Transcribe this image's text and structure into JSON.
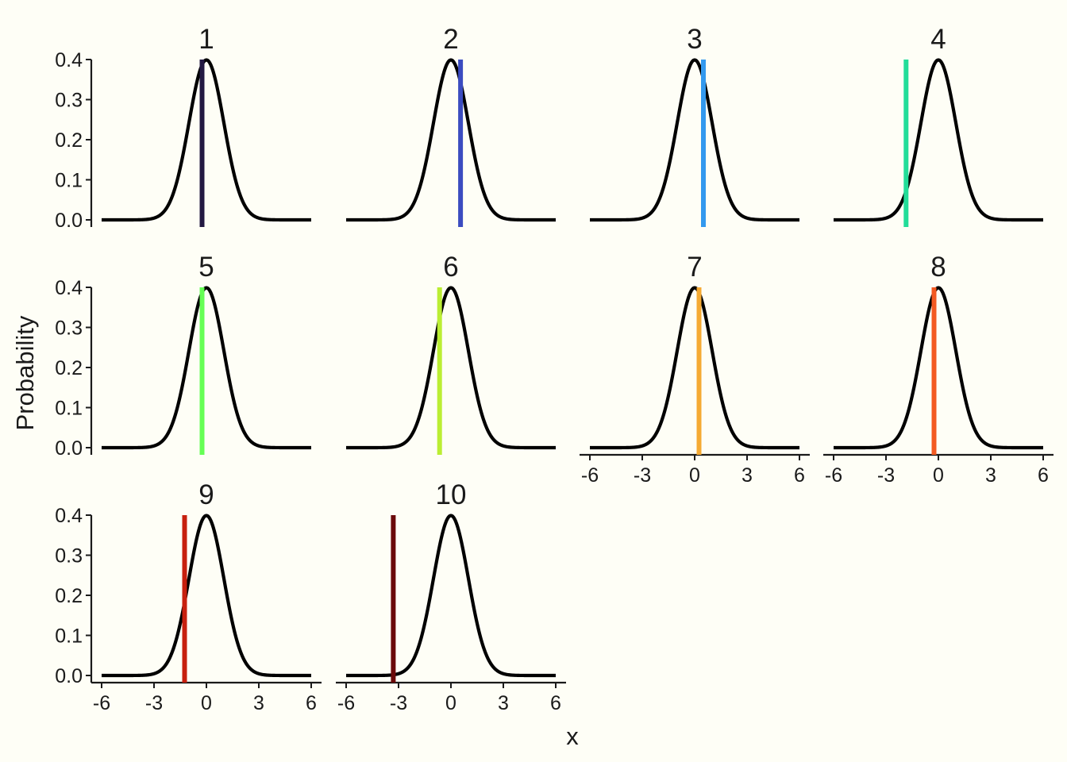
{
  "chart_data": {
    "type": "line",
    "layout": "facet-wrap",
    "xlabel": "x",
    "ylabel": "Probability",
    "xlim": [
      -6,
      6
    ],
    "ylim": [
      0,
      0.4
    ],
    "x_ticks": [
      "-6",
      "-3",
      "0",
      "3",
      "6"
    ],
    "y_ticks": [
      "0.0",
      "0.1",
      "0.2",
      "0.3",
      "0.4"
    ],
    "curve": {
      "distribution": "standard normal",
      "mean": 0,
      "sd": 1,
      "color": "#000000"
    },
    "panels": [
      {
        "label": "1",
        "vline_x": -0.25,
        "vline_color": "#231942"
      },
      {
        "label": "2",
        "vline_x": 0.55,
        "vline_color": "#3B4CC0"
      },
      {
        "label": "3",
        "vline_x": 0.5,
        "vline_color": "#3399EE"
      },
      {
        "label": "4",
        "vline_x": -1.85,
        "vline_color": "#22DD99"
      },
      {
        "label": "5",
        "vline_x": -0.25,
        "vline_color": "#66FF55"
      },
      {
        "label": "6",
        "vline_x": -0.65,
        "vline_color": "#BBEE33"
      },
      {
        "label": "7",
        "vline_x": 0.25,
        "vline_color": "#F5AA33"
      },
      {
        "label": "8",
        "vline_x": -0.25,
        "vline_color": "#F35A22"
      },
      {
        "label": "9",
        "vline_x": -1.25,
        "vline_color": "#C7200F"
      },
      {
        "label": "10",
        "vline_x": -3.3,
        "vline_color": "#6B0A0A"
      }
    ]
  }
}
